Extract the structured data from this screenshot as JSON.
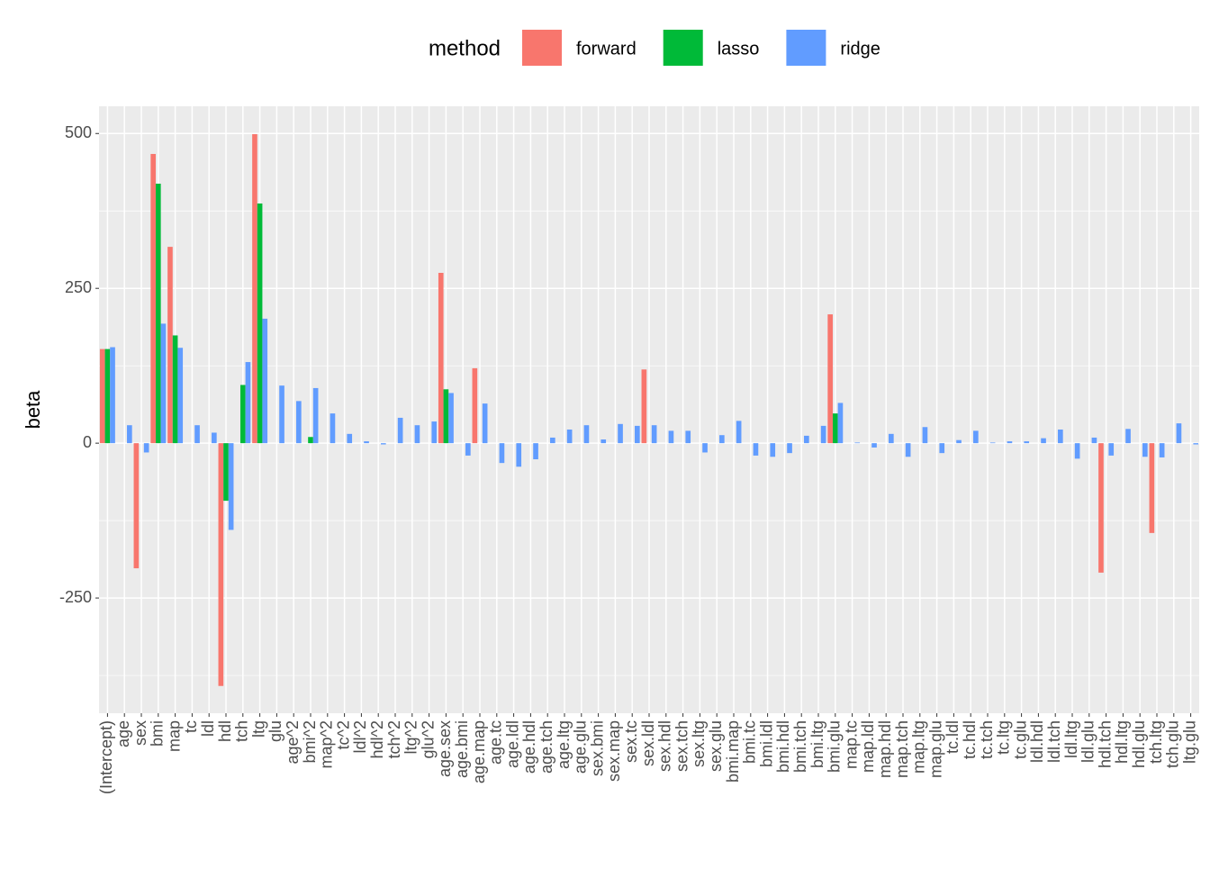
{
  "chart_data": {
    "type": "bar",
    "y_label": "beta",
    "legend_title": "method",
    "legend_position": "top",
    "categories": [
      "(Intercept)",
      "age",
      "sex",
      "bmi",
      "map",
      "tc",
      "ldl",
      "hdl",
      "tch",
      "ltg",
      "glu",
      "age^2",
      "bmi^2",
      "map^2",
      "tc^2",
      "ldl^2",
      "hdl^2",
      "tch^2",
      "ltg^2",
      "glu^2",
      "age.sex",
      "age.bmi",
      "age.map",
      "age.tc",
      "age.ldl",
      "age.hdl",
      "age.tch",
      "age.ltg",
      "age.glu",
      "sex.bmi",
      "sex.map",
      "sex.tc",
      "sex.ldl",
      "sex.hdl",
      "sex.tch",
      "sex.ltg",
      "sex.glu",
      "bmi.map",
      "bmi.tc",
      "bmi.ldl",
      "bmi.hdl",
      "bmi.tch",
      "bmi.ltg",
      "bmi.glu",
      "map.tc",
      "map.ldl",
      "map.hdl",
      "map.tch",
      "map.ltg",
      "map.glu",
      "tc.ldl",
      "tc.hdl",
      "tc.tch",
      "tc.ltg",
      "tc.glu",
      "ldl.hdl",
      "ldl.tch",
      "ldl.ltg",
      "ldl.glu",
      "hdl.tch",
      "hdl.ltg",
      "hdl.glu",
      "tch.ltg",
      "tch.glu",
      "ltg.glu"
    ],
    "series": [
      {
        "name": "forward",
        "color": "#F8766D",
        "values": [
          152,
          0,
          -202,
          467,
          317,
          0,
          0,
          -392,
          0,
          499,
          0,
          0,
          0,
          0,
          0,
          0,
          0,
          0,
          0,
          0,
          275,
          0,
          121,
          0,
          0,
          0,
          0,
          0,
          0,
          0,
          0,
          0,
          119,
          0,
          0,
          0,
          0,
          0,
          0,
          0,
          0,
          0,
          0,
          208,
          0,
          0,
          0,
          0,
          0,
          0,
          0,
          0,
          0,
          0,
          0,
          0,
          0,
          0,
          0,
          -209,
          0,
          0,
          -145,
          0,
          0
        ]
      },
      {
        "name": "lasso",
        "color": "#00BA38",
        "values": [
          152,
          0,
          0,
          419,
          174,
          0,
          0,
          -93,
          94,
          387,
          0,
          0,
          10,
          0,
          0,
          0,
          0,
          0,
          0,
          0,
          87,
          0,
          0,
          0,
          0,
          0,
          0,
          0,
          0,
          0,
          0,
          0,
          0,
          0,
          0,
          0,
          0,
          0,
          0,
          0,
          0,
          0,
          0,
          48,
          0,
          0,
          0,
          0,
          0,
          0,
          0,
          0,
          0,
          0,
          0,
          0,
          0,
          0,
          0,
          0,
          0,
          0,
          0,
          0,
          0
        ]
      },
      {
        "name": "ridge",
        "color": "#619CFF",
        "values": [
          155,
          29,
          -15,
          193,
          154,
          29,
          17,
          -140,
          131,
          201,
          93,
          68,
          89,
          48,
          15,
          3,
          -2,
          41,
          29,
          35,
          81,
          -20,
          64,
          -32,
          -38,
          -26,
          9,
          22,
          29,
          6,
          31,
          28,
          29,
          20,
          20,
          -15,
          13,
          36,
          -20,
          -22,
          -16,
          12,
          28,
          65,
          1,
          -7,
          15,
          -22,
          26,
          -16,
          5,
          20,
          1,
          3,
          3,
          8,
          22,
          -25,
          9,
          -20,
          23,
          -22,
          -23,
          32,
          -2
        ]
      }
    ],
    "ylim": [
      -436,
      544
    ],
    "yticks": [
      -250,
      0,
      250,
      500
    ],
    "grid": true
  }
}
